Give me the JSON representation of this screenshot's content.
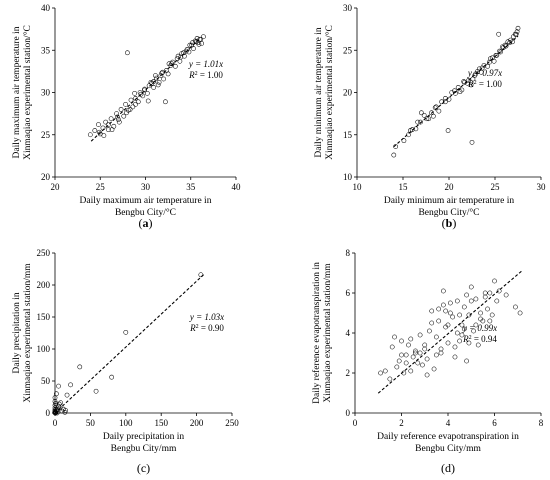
{
  "chart_data": [
    {
      "type": "scatter",
      "panel": "(a)",
      "caption_letter": "a",
      "xlabel": [
        "Daily maximum air temperature in",
        "Bengbu City/°C"
      ],
      "ylabel": [
        "Daily maximum air temperature in",
        "Xinmaqiao experimental station/°C"
      ],
      "xlim": [
        20,
        40
      ],
      "ylim": [
        20,
        40
      ],
      "xticks": [
        20,
        25,
        30,
        35,
        40
      ],
      "yticks": [
        20,
        25,
        30,
        35,
        40
      ],
      "equation": "y = 1.01x",
      "r2_label": "R",
      "r2_value": "= 1.00",
      "fit_slope": 1.01,
      "fit_x": [
        24,
        36
      ],
      "x": [
        23.9,
        24.4,
        24.8,
        25.0,
        25.3,
        25.6,
        25.9,
        26.2,
        26.5,
        26.8,
        27.0,
        27.3,
        27.6,
        27.8,
        28.1,
        28.4,
        28.6,
        28.9,
        29.2,
        29.4,
        29.7,
        29.9,
        30.2,
        30.4,
        30.7,
        30.9,
        31.2,
        31.5,
        31.7,
        32.0,
        32.3,
        32.5,
        32.8,
        33.0,
        33.3,
        33.5,
        33.8,
        34.0,
        34.3,
        34.6,
        34.8,
        35.1,
        35.3,
        35.6,
        35.8,
        36.0,
        36.2,
        36.4,
        35.5,
        34.9,
        33.9,
        32.9,
        31.9,
        30.9,
        29.9,
        28.9,
        27.9,
        26.9,
        25.9,
        24.9,
        27.1,
        28.3,
        29.5,
        30.6,
        31.8,
        32.6,
        33.6,
        34.5,
        35.2,
        35.9,
        36.1,
        35.7,
        34.2,
        31.4,
        28.8,
        26.3,
        25.4,
        28.0,
        32.2,
        31.1,
        30.3
      ],
      "y": [
        25.0,
        25.5,
        26.2,
        25.1,
        25.8,
        26.5,
        25.6,
        26.9,
        26.0,
        27.5,
        26.8,
        28.0,
        27.2,
        28.6,
        27.9,
        29.1,
        28.3,
        29.3,
        28.9,
        30.0,
        29.6,
        30.3,
        29.9,
        30.8,
        31.1,
        30.6,
        31.7,
        31.2,
        32.0,
        31.6,
        32.6,
        32.2,
        33.2,
        33.6,
        33.1,
        34.0,
        33.7,
        34.6,
        34.3,
        35.1,
        34.8,
        35.6,
        35.2,
        36.0,
        35.9,
        36.3,
        35.8,
        36.6,
        36.1,
        35.6,
        34.2,
        33.4,
        32.4,
        31.3,
        30.4,
        28.6,
        27.6,
        27.1,
        26.2,
        25.3,
        26.5,
        28.0,
        29.8,
        31.2,
        32.3,
        33.4,
        34.3,
        34.9,
        35.9,
        35.7,
        36.3,
        36.4,
        34.7,
        30.9,
        29.9,
        25.6,
        24.9,
        34.7,
        28.9,
        32.0,
        29.0
      ]
    },
    {
      "type": "scatter",
      "panel": "(b)",
      "caption_letter": "b",
      "xlabel": [
        "Daily minimum air temperature in",
        "Bengbu City/°C"
      ],
      "ylabel": [
        "Daily minimum air temperature in",
        "Xinmaqiao experimental station/°C"
      ],
      "xlim": [
        10,
        30
      ],
      "ylim": [
        10,
        30
      ],
      "xticks": [
        10,
        15,
        20,
        25,
        30
      ],
      "yticks": [
        10,
        15,
        20,
        25,
        30
      ],
      "equation": "y = 0.97x",
      "r2_label": "R",
      "r2_value": "= 1.00",
      "fit_slope": 0.97,
      "fit_x": [
        14,
        27.5
      ],
      "x": [
        14.0,
        14.2,
        15.1,
        15.6,
        16.0,
        16.4,
        16.9,
        17.3,
        17.8,
        18.1,
        18.5,
        18.9,
        19.2,
        19.6,
        20.0,
        20.3,
        20.7,
        21.0,
        21.4,
        21.7,
        22.1,
        22.4,
        22.8,
        23.1,
        23.5,
        23.8,
        24.2,
        24.5,
        24.9,
        25.2,
        25.5,
        25.8,
        26.1,
        26.4,
        26.7,
        27.0,
        27.3,
        27.5,
        26.9,
        26.2,
        25.6,
        24.7,
        23.6,
        22.6,
        21.6,
        20.6,
        19.6,
        18.6,
        17.6,
        16.6,
        19.9,
        21.2,
        22.9,
        24.4,
        25.9,
        26.6,
        27.2,
        25.1,
        23.3,
        22.0,
        18.3,
        17.0,
        15.8,
        22.5,
        25.4,
        27.4
      ],
      "y": [
        12.6,
        13.6,
        14.3,
        15.0,
        15.6,
        15.7,
        16.5,
        17.3,
        16.9,
        17.6,
        18.2,
        17.8,
        18.9,
        19.3,
        19.2,
        20.0,
        19.9,
        20.6,
        20.3,
        21.2,
        21.4,
        20.9,
        22.0,
        22.5,
        22.4,
        23.2,
        23.1,
        24.0,
        23.7,
        24.4,
        24.9,
        25.4,
        25.6,
        26.0,
        26.2,
        26.6,
        26.9,
        27.6,
        26.0,
        25.5,
        24.8,
        24.1,
        22.9,
        21.6,
        21.3,
        20.2,
        18.9,
        18.3,
        16.9,
        16.5,
        15.5,
        20.1,
        22.2,
        23.6,
        25.3,
        25.9,
        26.9,
        24.4,
        22.8,
        21.1,
        17.2,
        17.6,
        15.5,
        14.1,
        26.9,
        27.2
      ]
    },
    {
      "type": "scatter",
      "panel": "(c)",
      "caption_letter": "c",
      "xlabel": [
        "Daily precipitation in",
        "Bengbu City/mm"
      ],
      "ylabel": [
        "Daily precipitation in",
        "Xinmaqiao experimental station/mm"
      ],
      "xlim": [
        0,
        250
      ],
      "ylim": [
        0,
        250
      ],
      "xticks": [
        0,
        50,
        100,
        150,
        200,
        250
      ],
      "yticks": [
        0,
        50,
        100,
        150,
        200,
        250
      ],
      "equation": "y = 1.03x",
      "r2_label": "R",
      "r2_value": "= 0.90",
      "fit_slope": 1.03,
      "fit_x": [
        0,
        210
      ],
      "x": [
        0,
        0,
        0,
        0,
        0,
        0,
        0,
        0,
        1,
        2,
        3,
        4,
        5,
        6,
        8,
        10,
        12,
        14,
        2,
        5,
        15,
        17,
        22,
        35,
        58,
        80,
        100,
        206,
        1,
        3,
        7,
        1,
        0
      ],
      "y": [
        0,
        1,
        2,
        3,
        5,
        8,
        12,
        24,
        0,
        4,
        2,
        6,
        10,
        14,
        16,
        3,
        6,
        1,
        30,
        42,
        4,
        28,
        44,
        72,
        34,
        56,
        126,
        216,
        1,
        0,
        8,
        15,
        18
      ]
    },
    {
      "type": "scatter",
      "panel": "(d)",
      "caption_letter": "d",
      "xlabel": [
        "Daily reference evapotranspiration in",
        "Bengbu City/mm"
      ],
      "ylabel": [
        "Daily reference evapotranspiration in",
        "Xinmaqiao experimental station/mm"
      ],
      "xlim": [
        0,
        8
      ],
      "ylim": [
        0,
        8
      ],
      "xticks": [
        0,
        2,
        4,
        6,
        8
      ],
      "yticks": [
        0,
        2,
        4,
        6,
        8
      ],
      "equation": "y = 0.99x",
      "r2_label": "R",
      "r2_value": "= 0.94",
      "fit_slope": 0.99,
      "fit_x": [
        1,
        7.2
      ],
      "x": [
        1.1,
        1.3,
        1.5,
        1.6,
        1.8,
        1.9,
        2.0,
        2.1,
        2.2,
        2.3,
        2.4,
        2.5,
        2.6,
        2.7,
        2.8,
        2.9,
        3.0,
        3.1,
        3.2,
        3.3,
        3.4,
        3.5,
        3.6,
        3.7,
        3.8,
        3.9,
        4.0,
        4.1,
        4.2,
        4.3,
        4.4,
        4.5,
        4.6,
        4.7,
        4.8,
        4.9,
        5.0,
        5.1,
        5.2,
        5.3,
        5.4,
        5.5,
        5.6,
        5.7,
        5.8,
        5.9,
        6.0,
        6.1,
        6.2,
        6.5,
        6.9,
        7.1,
        2.2,
        2.6,
        3.0,
        3.3,
        3.7,
        4.1,
        4.4,
        4.8,
        5.2,
        5.6,
        3.5,
        4.0,
        4.6,
        5.0,
        2.8,
        3.9,
        4.3,
        4.7,
        2.4,
        3.1,
        3.6,
        4.9,
        5.4,
        1.7,
        2.0,
        3.8,
        4.5,
        5.8
      ],
      "y": [
        2.0,
        2.1,
        1.7,
        3.3,
        2.3,
        2.6,
        3.6,
        2.0,
        2.9,
        3.4,
        2.1,
        2.8,
        3.1,
        2.5,
        3.9,
        2.4,
        3.2,
        1.9,
        4.1,
        5.1,
        2.2,
        3.8,
        4.6,
        3.0,
        5.4,
        4.3,
        3.5,
        5.0,
        4.8,
        2.8,
        5.6,
        3.6,
        4.4,
        5.3,
        2.6,
        4.9,
        6.3,
        4.1,
        5.7,
        3.4,
        5.0,
        4.6,
        5.8,
        5.2,
        6.0,
        4.9,
        6.6,
        5.6,
        6.1,
        5.9,
        5.3,
        5.0,
        2.5,
        3.0,
        3.4,
        4.5,
        3.2,
        5.5,
        4.0,
        5.9,
        4.4,
        6.0,
        2.9,
        4.4,
        3.9,
        5.6,
        3.0,
        5.1,
        3.3,
        4.2,
        3.7,
        2.7,
        5.2,
        3.5,
        4.7,
        3.8,
        2.9,
        6.1,
        4.9,
        4.6
      ]
    }
  ]
}
